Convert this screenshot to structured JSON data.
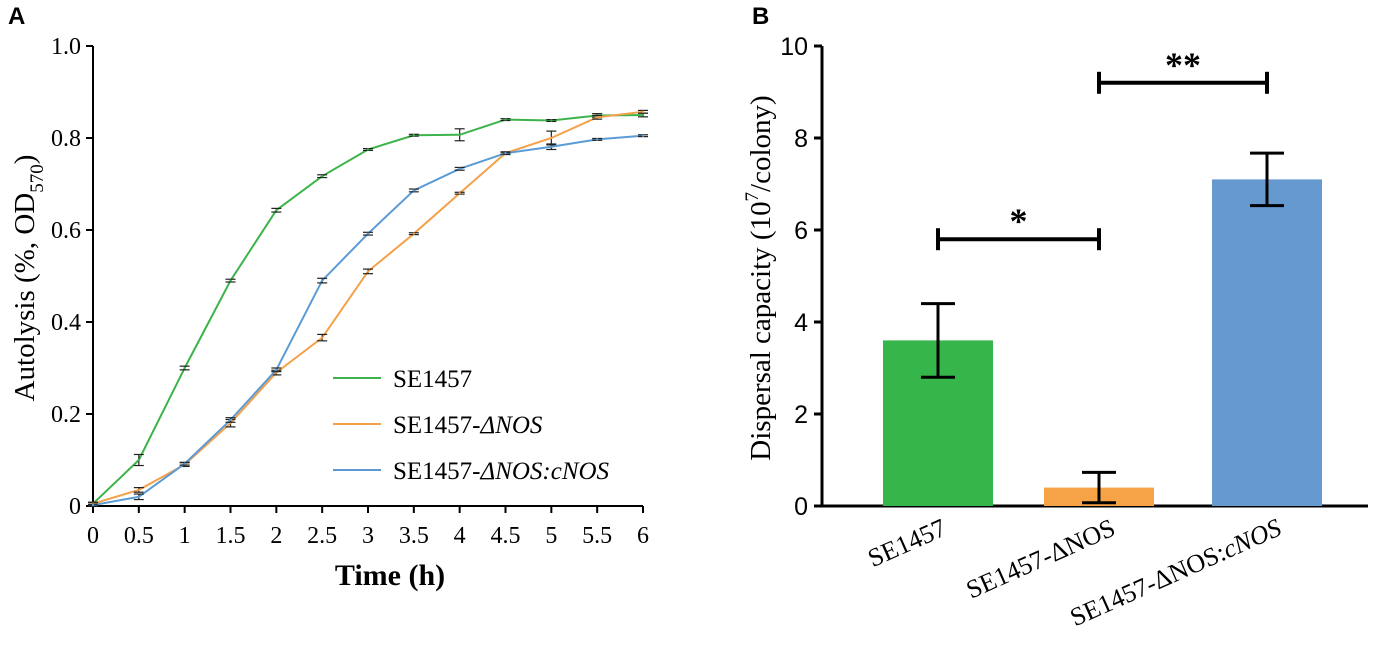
{
  "chart_data": [
    {
      "type": "line",
      "panel_label": "A",
      "xlabel": "Time (h)",
      "ylabel": {
        "main": "Autolysis  (%, OD",
        "sub": "570",
        "end": ")"
      },
      "xlim": [
        0,
        6
      ],
      "ylim": [
        0,
        1.0
      ],
      "x_ticks": [
        0,
        0.5,
        1,
        1.5,
        2,
        2.5,
        3,
        3.5,
        4,
        4.5,
        5,
        5.5,
        6
      ],
      "x_tick_labels": [
        "0",
        "0.5",
        "1",
        "1.5",
        "2",
        "2.5",
        "3",
        "3.5",
        "4",
        "4.5",
        "5",
        "5.5",
        "6"
      ],
      "y_ticks": [
        0,
        0.2,
        0.4,
        0.6,
        0.8,
        1.0
      ],
      "y_tick_labels": [
        "0",
        "0.2",
        "0.4",
        "0.6",
        "0.8",
        "1.0"
      ],
      "legend": "center-right",
      "x": [
        0,
        0.5,
        1,
        1.5,
        2,
        2.5,
        3,
        3.5,
        4,
        4.5,
        5,
        5.5,
        6
      ],
      "series": [
        {
          "name": "SE1457",
          "legend_label": [
            "SE1457",
            ""
          ],
          "color": "#3cb44b",
          "values": [
            0.005,
            0.1,
            0.3,
            0.49,
            0.643,
            0.717,
            0.775,
            0.806,
            0.807,
            0.84,
            0.838,
            0.849,
            0.85
          ],
          "errors": [
            0.003,
            0.012,
            0.004,
            0.003,
            0.004,
            0.003,
            0.002,
            0.002,
            0.013,
            0.002,
            0.002,
            0.004,
            0.004
          ]
        },
        {
          "name": "SE1457-ΔNOS",
          "legend_label": [
            "SE1457-",
            "ΔNOS"
          ],
          "color": "#f4a14a",
          "values": [
            0.005,
            0.035,
            0.09,
            0.18,
            0.29,
            0.366,
            0.51,
            0.592,
            0.68,
            0.767,
            0.8,
            0.845,
            0.857
          ],
          "errors": [
            0.003,
            0.005,
            0.004,
            0.008,
            0.005,
            0.007,
            0.005,
            0.002,
            0.002,
            0.003,
            0.015,
            0.004,
            0.003
          ]
        },
        {
          "name": "SE1457-ΔNOS:cNOS",
          "legend_label": [
            "SE1457-",
            "ΔNOS:cNOS"
          ],
          "color": "#5b9bd5",
          "values": [
            0.002,
            0.02,
            0.092,
            0.187,
            0.296,
            0.49,
            0.592,
            0.686,
            0.733,
            0.767,
            0.781,
            0.797,
            0.805
          ],
          "errors": [
            0.002,
            0.006,
            0.003,
            0.005,
            0.004,
            0.005,
            0.003,
            0.003,
            0.003,
            0.002,
            0.006,
            0.002,
            0.002
          ]
        }
      ]
    },
    {
      "type": "bar",
      "panel_label": "B",
      "ylabel": {
        "main": "Dispersal capacity (10",
        "sup": "7",
        "end": "/colony)"
      },
      "ylim": [
        0,
        10
      ],
      "y_ticks": [
        0,
        2,
        4,
        6,
        8,
        10
      ],
      "y_tick_labels": [
        "0",
        "2",
        "4",
        "6",
        "8",
        "10"
      ],
      "categories": [
        "SE1457",
        "SE1457-ΔNOS",
        "SE1457-ΔNOS:cNOS"
      ],
      "category_labels": [
        [
          "SE1457",
          ""
        ],
        [
          "SE1457-ΔNOS",
          ""
        ],
        [
          "SE1457-ΔNOS:",
          "cNOS"
        ]
      ],
      "values": [
        3.6,
        0.4,
        7.1
      ],
      "errors": [
        0.8,
        0.33,
        0.57
      ],
      "colors": [
        "#36b54a",
        "#f5a346",
        "#6699d0"
      ],
      "significance": [
        {
          "from": 0,
          "to": 1,
          "label": "*",
          "y": 5.8
        },
        {
          "from": 1,
          "to": 2,
          "label": "**",
          "y": 9.2
        }
      ]
    }
  ]
}
